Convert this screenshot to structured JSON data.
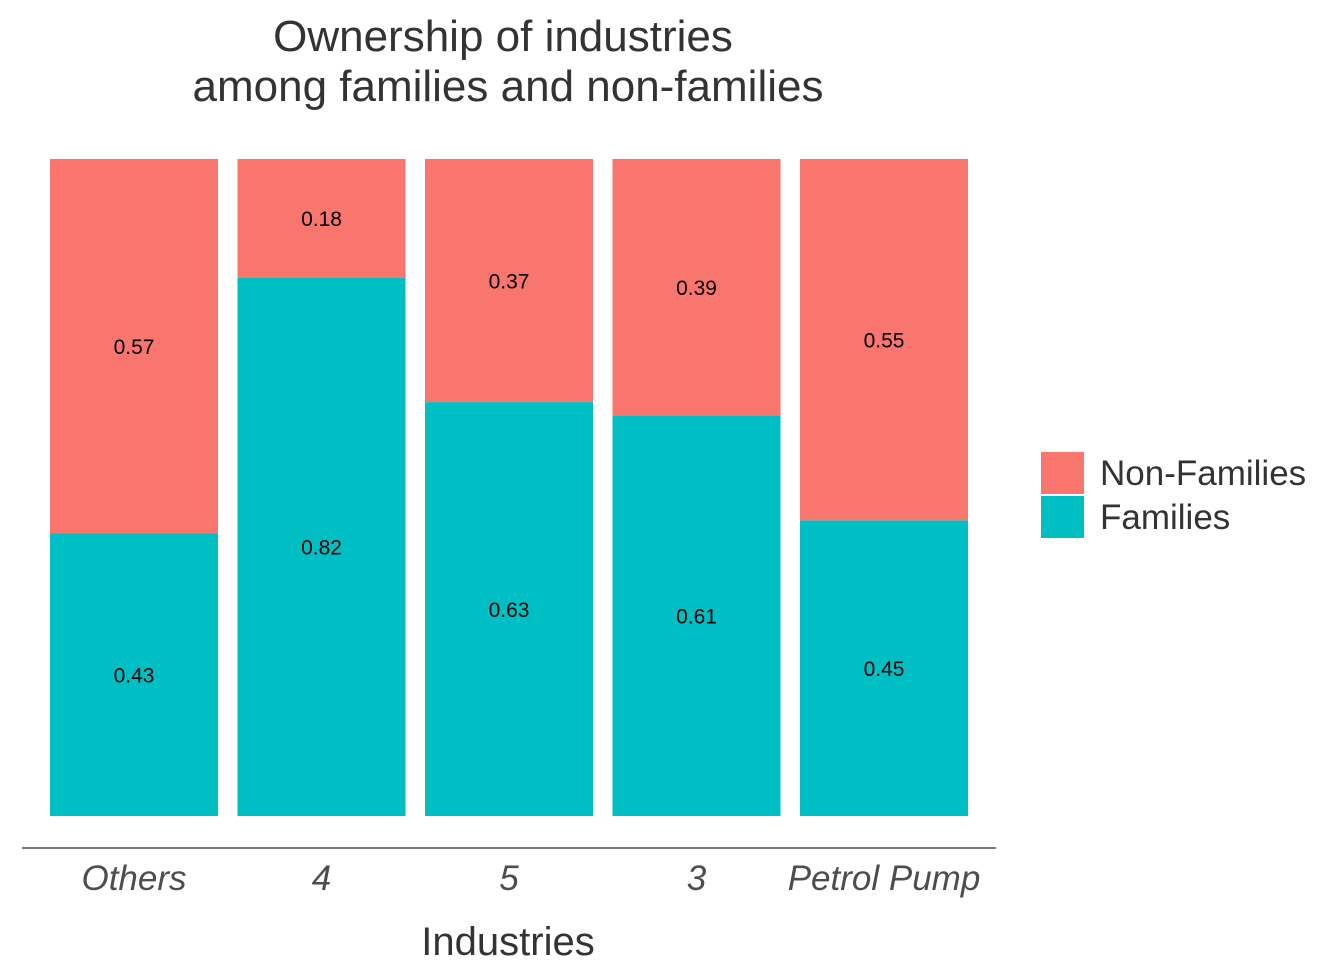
{
  "chart_data": {
    "type": "bar",
    "stacked": true,
    "normalized": true,
    "title": [
      "Ownership of industries",
      "among families and non-families"
    ],
    "xlabel": "Industries",
    "ylabel": "",
    "ylim": [
      0,
      1
    ],
    "grid": false,
    "legend_position": "right",
    "categories": [
      "Others",
      "4",
      "5",
      "3",
      "Petrol Pump"
    ],
    "series": [
      {
        "name": "Families",
        "color": "#00BFC4",
        "values": [
          0.43,
          0.82,
          0.63,
          0.61,
          0.45
        ],
        "labels": [
          "0.43",
          "0.82",
          "0.63",
          "0.61",
          "0.45"
        ]
      },
      {
        "name": "Non-Families",
        "color": "#F8766D",
        "values": [
          0.57,
          0.18,
          0.37,
          0.39,
          0.55
        ],
        "labels": [
          "0.57",
          "0.18",
          "0.37",
          "0.39",
          "0.55"
        ]
      }
    ],
    "legend": [
      "Non-Families",
      "Families"
    ]
  }
}
